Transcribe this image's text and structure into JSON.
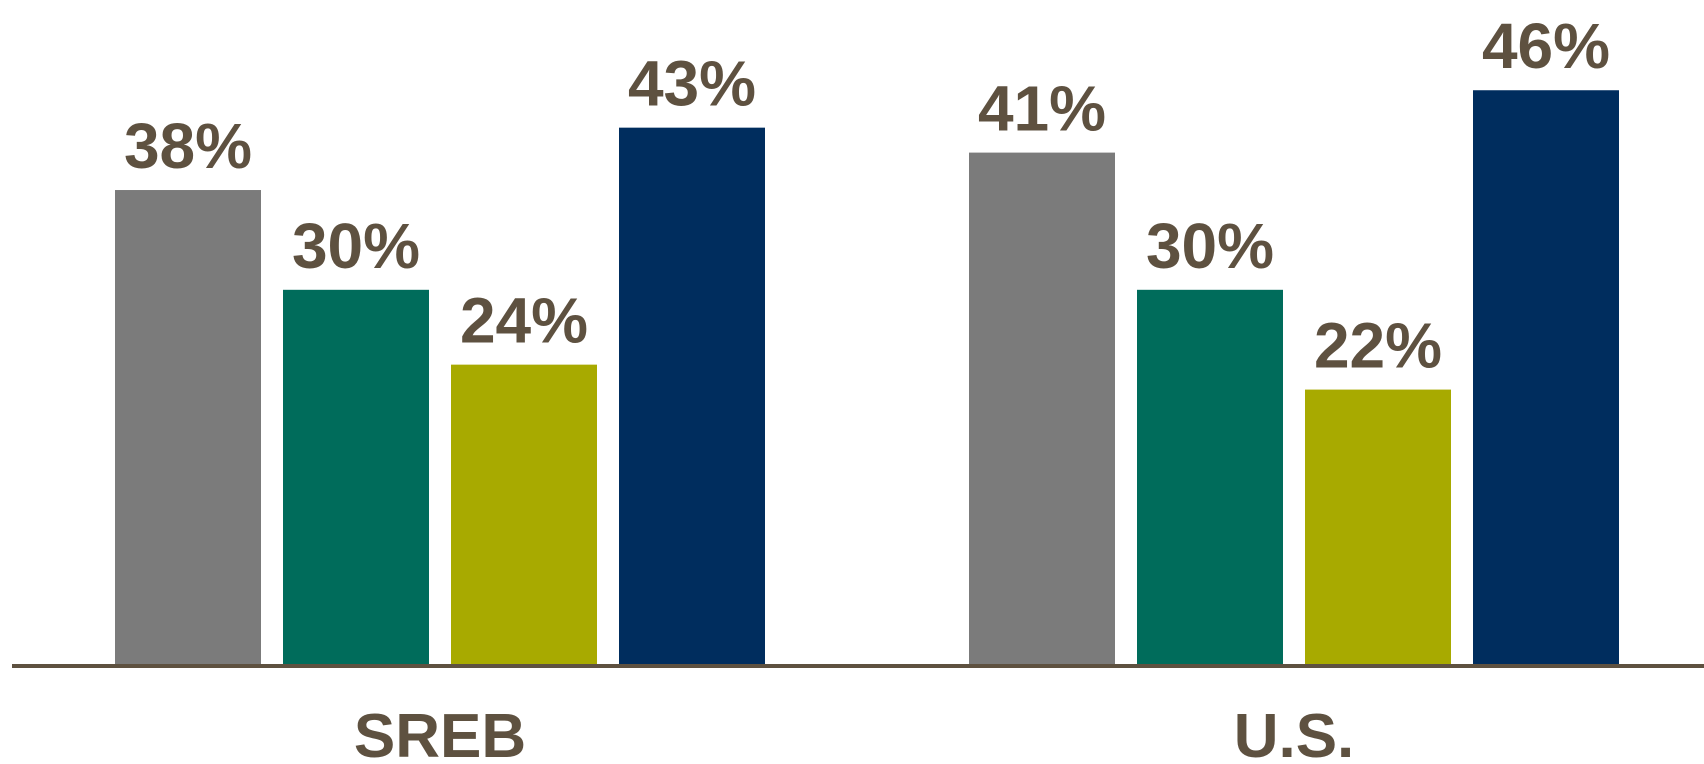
{
  "chart_data": {
    "type": "bar",
    "title": "",
    "xlabel": "",
    "ylabel": "",
    "categories": [
      "SREB",
      "U.S."
    ],
    "ylim": [
      0,
      46.5
    ],
    "grid": false,
    "legend": "none",
    "value_suffix": "%",
    "series": [
      {
        "color": "#7B7B7B",
        "values": [
          38,
          41
        ]
      },
      {
        "color": "#006C5B",
        "values": [
          30,
          30
        ]
      },
      {
        "color": "#A8AA00",
        "values": [
          24,
          22
        ]
      },
      {
        "color": "#002D5E",
        "values": [
          43,
          46
        ]
      }
    ],
    "axis_color": "#5E5140"
  }
}
